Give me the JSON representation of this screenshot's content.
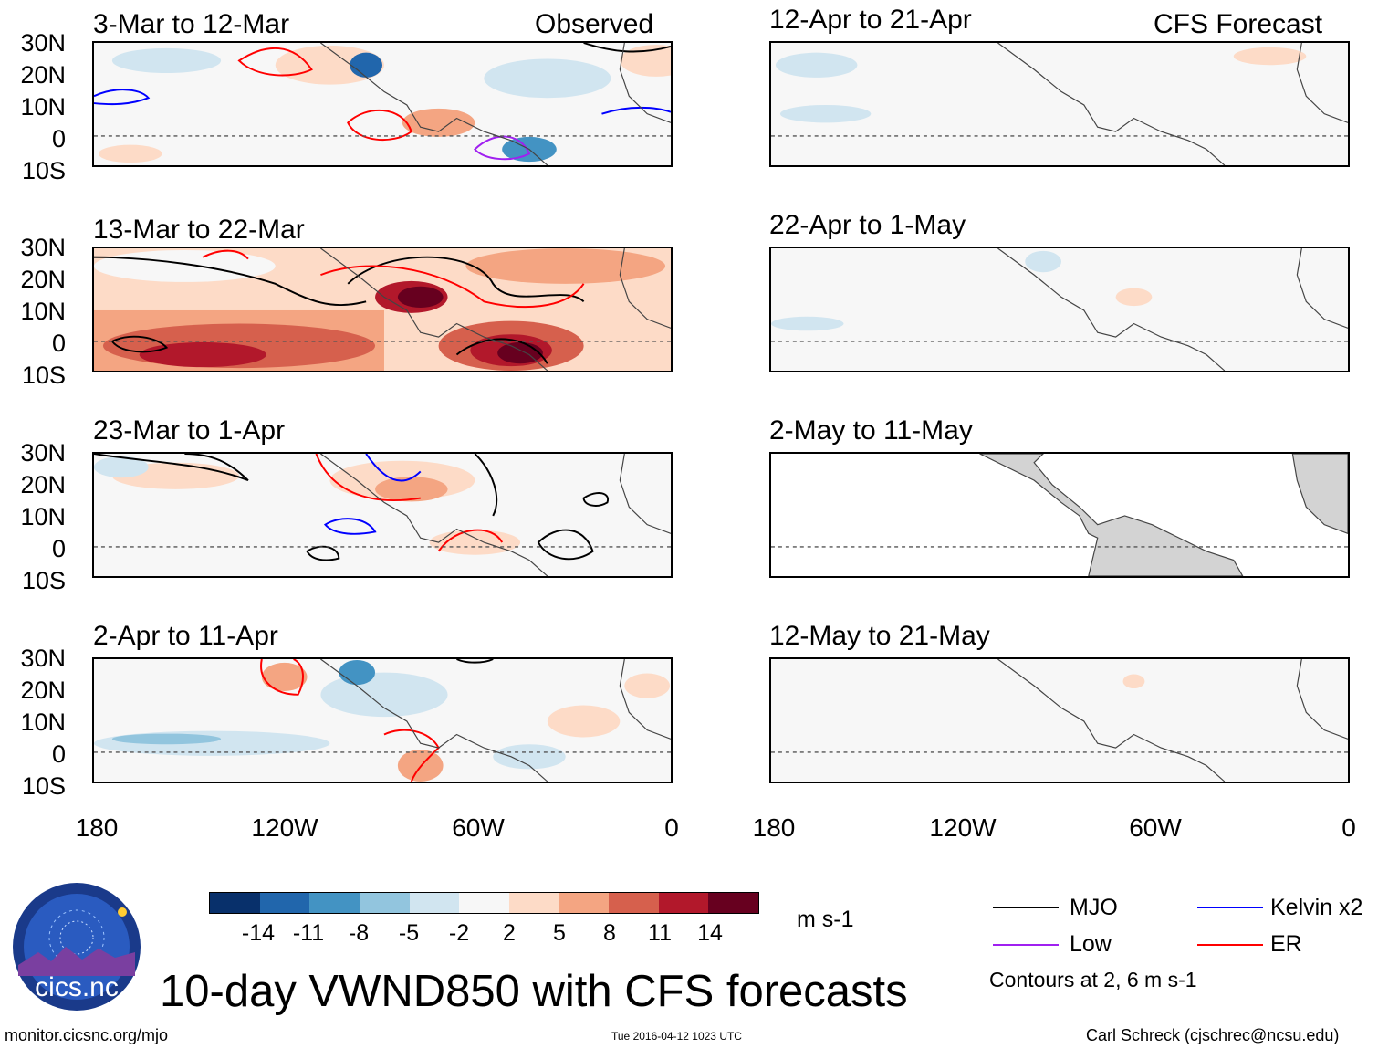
{
  "title": "10-day VWND850 with CFS forecasts",
  "observed_label": "Observed",
  "forecast_label": "CFS Forecast",
  "panels": {
    "observed": [
      "3-Mar to 12-Mar",
      "13-Mar to 22-Mar",
      "23-Mar to 1-Apr",
      "2-Apr to 11-Apr"
    ],
    "forecast": [
      "12-Apr to 21-Apr",
      "22-Apr to 1-May",
      "2-May to 11-May",
      "12-May to 21-May"
    ]
  },
  "lat_ticks": [
    "30N",
    "20N",
    "10N",
    "0",
    "10S"
  ],
  "lon_ticks": [
    "180",
    "120W",
    "60W",
    "0"
  ],
  "colorbar": {
    "ticks": [
      "-14",
      "-11",
      "-8",
      "-5",
      "-2",
      "2",
      "5",
      "8",
      "11",
      "14"
    ],
    "units": "m s-1",
    "colors": [
      "#08306b",
      "#2166ac",
      "#4393c3",
      "#92c5de",
      "#d1e5f0",
      "#f7f7f7",
      "#fddbc7",
      "#f4a582",
      "#d6604d",
      "#b2182b",
      "#67001f"
    ]
  },
  "legend": {
    "items": [
      {
        "label": "MJO",
        "color": "#000000"
      },
      {
        "label": "Kelvin x2",
        "color": "#0000ff"
      },
      {
        "label": "Low",
        "color": "#a020f0"
      },
      {
        "label": "ER",
        "color": "#ff0000"
      }
    ],
    "note": "Contours at 2, 6 m s-1"
  },
  "logo_text": "cics.nc",
  "logo_ring_text": "Cooperative Institute for Climate and Satellites",
  "footer": {
    "left": "monitor.cicsnc.org/mjo",
    "center": "Tue 2016-04-12 1023 UTC",
    "right": "Carl Schreck (cjschrec@ncsu.edu)"
  }
}
